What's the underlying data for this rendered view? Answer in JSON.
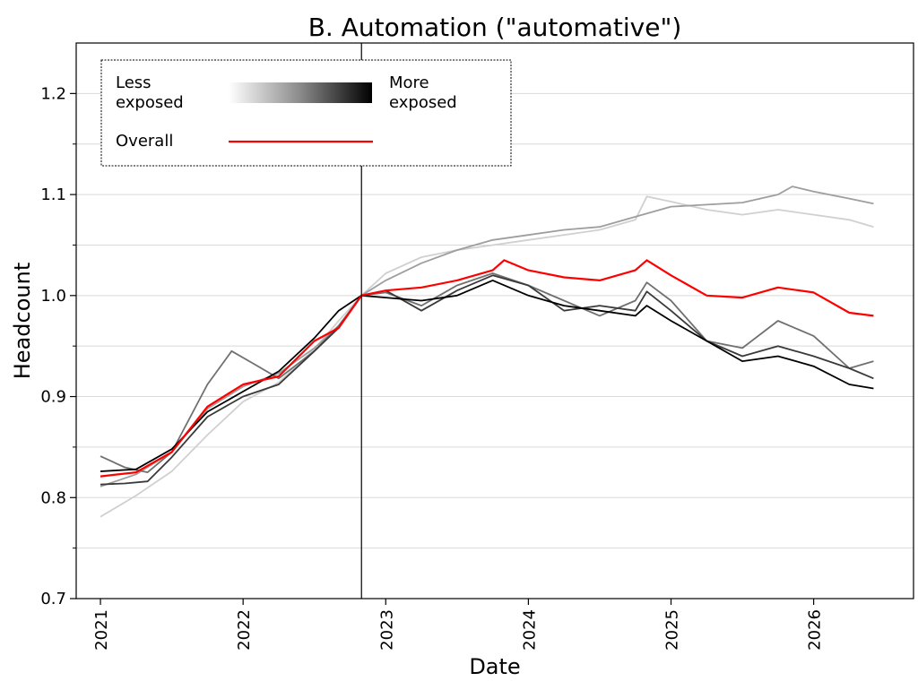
{
  "chart_data": {
    "type": "line",
    "title": "B. Automation (\"automative\")",
    "xlabel": "Date",
    "ylabel": "Headcount",
    "xlim": [
      2020.83,
      2026.7
    ],
    "ylim": [
      0.7,
      1.25
    ],
    "x_ticks": [
      2021,
      2022,
      2023,
      2024,
      2025,
      2026
    ],
    "x_tick_labels": [
      "2021",
      "2022",
      "2023",
      "2024",
      "2025",
      "2026"
    ],
    "y_ticks": [
      0.7,
      0.8,
      0.9,
      1.0,
      1.1,
      1.2
    ],
    "y_tick_labels": [
      "0.7",
      "0.8",
      "0.9",
      "1.0",
      "1.1",
      "1.2"
    ],
    "grid": "horizontal",
    "vline_x": 2022.83,
    "legend": {
      "position": "top-left",
      "less_label": "Less\nexposed",
      "more_label": "More\nexposed",
      "overall_label": "Overall"
    },
    "colors": {
      "overall": "#ff0000",
      "q1": "#d0d0d0",
      "q2": "#9e9e9e",
      "q3": "#707070",
      "q4": "#3a3a3a",
      "q5": "#000000",
      "gridline": "#d9d9d9"
    },
    "series": [
      {
        "key": "q1",
        "x": [
          2021.0,
          2021.25,
          2021.5,
          2021.75,
          2022.0,
          2022.25,
          2022.5,
          2022.67,
          2022.83,
          2023.0,
          2023.25,
          2023.5,
          2023.75,
          2024.0,
          2024.25,
          2024.5,
          2024.75,
          2024.83,
          2025.0,
          2025.25,
          2025.5,
          2025.75,
          2026.0,
          2026.25,
          2026.42
        ],
        "values": [
          0.781,
          0.802,
          0.826,
          0.862,
          0.895,
          0.914,
          0.947,
          0.975,
          1.0,
          1.022,
          1.038,
          1.045,
          1.05,
          1.055,
          1.06,
          1.065,
          1.075,
          1.098,
          1.093,
          1.085,
          1.08,
          1.085,
          1.08,
          1.075,
          1.068
        ]
      },
      {
        "key": "q2",
        "x": [
          2021.0,
          2021.25,
          2021.5,
          2021.75,
          2022.0,
          2022.25,
          2022.5,
          2022.67,
          2022.83,
          2023.0,
          2023.25,
          2023.5,
          2023.75,
          2024.0,
          2024.25,
          2024.5,
          2024.75,
          2025.0,
          2025.25,
          2025.5,
          2025.75,
          2025.85,
          2026.0,
          2026.25,
          2026.42
        ],
        "values": [
          0.811,
          0.823,
          0.845,
          0.888,
          0.91,
          0.923,
          0.948,
          0.97,
          1.0,
          1.015,
          1.032,
          1.045,
          1.055,
          1.06,
          1.065,
          1.068,
          1.078,
          1.088,
          1.09,
          1.092,
          1.1,
          1.108,
          1.103,
          1.096,
          1.091
        ]
      },
      {
        "key": "q3",
        "x": [
          2021.0,
          2021.17,
          2021.33,
          2021.5,
          2021.75,
          2021.92,
          2022.08,
          2022.25,
          2022.5,
          2022.67,
          2022.83,
          2023.0,
          2023.25,
          2023.5,
          2023.75,
          2024.0,
          2024.25,
          2024.5,
          2024.75,
          2024.83,
          2025.0,
          2025.25,
          2025.5,
          2025.75,
          2026.0,
          2026.25,
          2026.42
        ],
        "values": [
          0.841,
          0.83,
          0.825,
          0.845,
          0.912,
          0.945,
          0.932,
          0.918,
          0.945,
          0.97,
          1.0,
          1.003,
          0.99,
          1.01,
          1.022,
          1.01,
          0.995,
          0.98,
          0.995,
          1.013,
          0.995,
          0.955,
          0.948,
          0.975,
          0.96,
          0.928,
          0.935
        ]
      },
      {
        "key": "q4",
        "x": [
          2021.0,
          2021.17,
          2021.33,
          2021.5,
          2021.75,
          2022.0,
          2022.25,
          2022.5,
          2022.67,
          2022.83,
          2023.0,
          2023.25,
          2023.5,
          2023.75,
          2024.0,
          2024.25,
          2024.5,
          2024.75,
          2024.83,
          2025.0,
          2025.25,
          2025.5,
          2025.75,
          2026.0,
          2026.25,
          2026.42
        ],
        "values": [
          0.813,
          0.814,
          0.816,
          0.84,
          0.88,
          0.9,
          0.912,
          0.945,
          0.968,
          1.0,
          1.005,
          0.985,
          1.005,
          1.02,
          1.01,
          0.985,
          0.99,
          0.985,
          1.004,
          0.985,
          0.955,
          0.94,
          0.95,
          0.94,
          0.928,
          0.918
        ]
      },
      {
        "key": "q5",
        "x": [
          2021.0,
          2021.25,
          2021.5,
          2021.75,
          2022.0,
          2022.25,
          2022.5,
          2022.67,
          2022.83,
          2023.0,
          2023.25,
          2023.5,
          2023.75,
          2024.0,
          2024.25,
          2024.5,
          2024.75,
          2024.83,
          2025.0,
          2025.25,
          2025.5,
          2025.75,
          2026.0,
          2026.25,
          2026.42
        ],
        "values": [
          0.826,
          0.828,
          0.848,
          0.885,
          0.905,
          0.925,
          0.958,
          0.985,
          1.0,
          0.998,
          0.995,
          1.0,
          1.015,
          1.0,
          0.99,
          0.985,
          0.98,
          0.99,
          0.975,
          0.955,
          0.935,
          0.94,
          0.93,
          0.912,
          0.908
        ]
      },
      {
        "key": "overall",
        "x": [
          2021.0,
          2021.25,
          2021.5,
          2021.75,
          2022.0,
          2022.25,
          2022.5,
          2022.67,
          2022.83,
          2023.0,
          2023.25,
          2023.5,
          2023.75,
          2023.83,
          2024.0,
          2024.25,
          2024.5,
          2024.75,
          2024.83,
          2025.0,
          2025.25,
          2025.5,
          2025.75,
          2026.0,
          2026.25,
          2026.42
        ],
        "values": [
          0.821,
          0.825,
          0.845,
          0.89,
          0.912,
          0.92,
          0.955,
          0.968,
          1.0,
          1.005,
          1.008,
          1.015,
          1.025,
          1.035,
          1.025,
          1.018,
          1.015,
          1.025,
          1.035,
          1.02,
          1.0,
          0.998,
          1.008,
          1.003,
          0.983,
          0.98
        ]
      }
    ]
  }
}
